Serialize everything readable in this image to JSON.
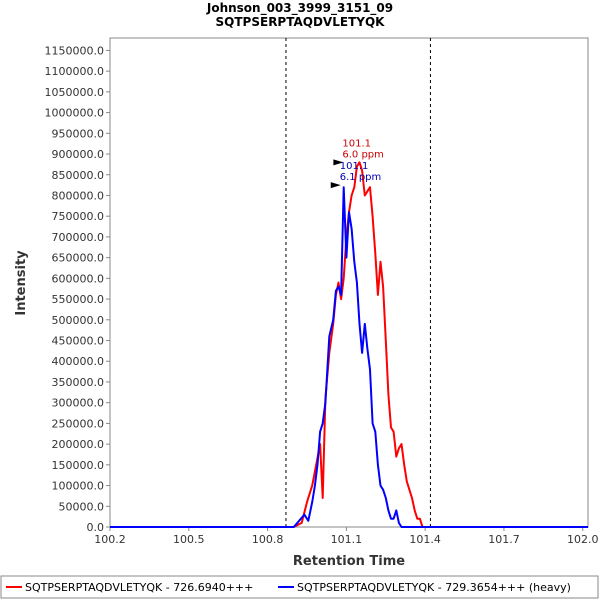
{
  "chart_data": {
    "type": "line",
    "title": "Johnson_003_3999_3151_09",
    "subtitle": "SQTPSERPTAQDVLETYQK",
    "xlabel": "Retention Time",
    "ylabel": "Intensity",
    "xlim": [
      100.2,
      102.02
    ],
    "ylim": [
      0,
      1180000
    ],
    "x_ticks": [
      "100.2",
      "100.5",
      "100.8",
      "101.1",
      "101.4",
      "101.7",
      "102.0"
    ],
    "x_tick_values": [
      100.2,
      100.5,
      100.8,
      101.1,
      101.4,
      101.7,
      102.0
    ],
    "y_ticks": [
      "0.0",
      "50000.0",
      "100000.0",
      "150000.0",
      "200000.0",
      "250000.0",
      "300000.0",
      "350000.0",
      "400000.0",
      "450000.0",
      "500000.0",
      "550000.0",
      "600000.0",
      "650000.0",
      "700000.0",
      "750000.0",
      "800000.0",
      "850000.0",
      "900000.0",
      "950000.0",
      "1000000.0",
      "1050000.0",
      "1100000.0",
      "1150000.0"
    ],
    "y_tick_values": [
      0,
      50000,
      100000,
      150000,
      200000,
      250000,
      300000,
      350000,
      400000,
      450000,
      500000,
      550000,
      600000,
      650000,
      700000,
      750000,
      800000,
      850000,
      900000,
      950000,
      1000000,
      1050000,
      1100000,
      1150000
    ],
    "vlines": [
      100.87,
      101.42
    ],
    "grid": false,
    "legend_position": "bottom",
    "series": [
      {
        "name": "SQTPSERPTAQDVLETYQK - 726.6940+++",
        "color": "#ff0000",
        "x": [
          100.2,
          100.9,
          100.93,
          100.95,
          100.97,
          100.985,
          101.0,
          101.01,
          101.02,
          101.035,
          101.05,
          101.06,
          101.07,
          101.08,
          101.09,
          101.1,
          101.11,
          101.12,
          101.13,
          101.14,
          101.15,
          101.16,
          101.17,
          101.18,
          101.19,
          101.2,
          101.21,
          101.22,
          101.23,
          101.24,
          101.25,
          101.26,
          101.27,
          101.28,
          101.29,
          101.3,
          101.31,
          101.32,
          101.33,
          101.34,
          101.35,
          101.36,
          101.37,
          101.38,
          101.39,
          101.4,
          101.41,
          101.43,
          102.02
        ],
        "y": [
          0,
          0,
          10000,
          60000,
          100000,
          150000,
          200000,
          70000,
          310000,
          420000,
          490000,
          560000,
          590000,
          550000,
          600000,
          700000,
          760000,
          800000,
          820000,
          870000,
          880000,
          860000,
          800000,
          810000,
          820000,
          750000,
          660000,
          560000,
          640000,
          580000,
          450000,
          320000,
          240000,
          230000,
          170000,
          190000,
          200000,
          150000,
          110000,
          90000,
          70000,
          40000,
          20000,
          20000,
          0,
          0,
          0,
          0,
          0
        ]
      },
      {
        "name": "SQTPSERPTAQDVLETYQK - 729.3654+++ (heavy)",
        "color": "#0000ff",
        "x": [
          100.2,
          100.88,
          100.9,
          100.92,
          100.94,
          100.955,
          100.97,
          100.98,
          100.99,
          101.0,
          101.01,
          101.02,
          101.035,
          101.05,
          101.06,
          101.07,
          101.08,
          101.09,
          101.1,
          101.11,
          101.12,
          101.13,
          101.14,
          101.15,
          101.16,
          101.17,
          101.18,
          101.19,
          101.2,
          101.21,
          101.22,
          101.23,
          101.24,
          101.25,
          101.26,
          101.27,
          101.28,
          101.29,
          101.3,
          101.31,
          101.32,
          101.33,
          101.34,
          101.35,
          101.36,
          101.37,
          101.38,
          101.39,
          101.4,
          101.41,
          101.43,
          102.02
        ],
        "y": [
          0,
          0,
          0,
          15000,
          30000,
          15000,
          60000,
          100000,
          150000,
          230000,
          250000,
          300000,
          460000,
          500000,
          570000,
          580000,
          560000,
          820000,
          650000,
          760000,
          720000,
          640000,
          590000,
          490000,
          420000,
          490000,
          430000,
          380000,
          250000,
          230000,
          150000,
          100000,
          90000,
          70000,
          40000,
          20000,
          20000,
          40000,
          10000,
          0,
          0,
          0,
          0,
          0,
          0,
          0,
          0,
          0,
          0,
          0,
          0,
          0
        ]
      }
    ],
    "annotations": [
      {
        "x": 101.1,
        "y": 880000,
        "line1": "101.1",
        "line2": "6.0 ppm",
        "color": "#cc0000"
      },
      {
        "x": 101.09,
        "y": 825000,
        "line1": "101.1",
        "line2": "6.1 ppm",
        "color": "#0000aa"
      }
    ]
  }
}
